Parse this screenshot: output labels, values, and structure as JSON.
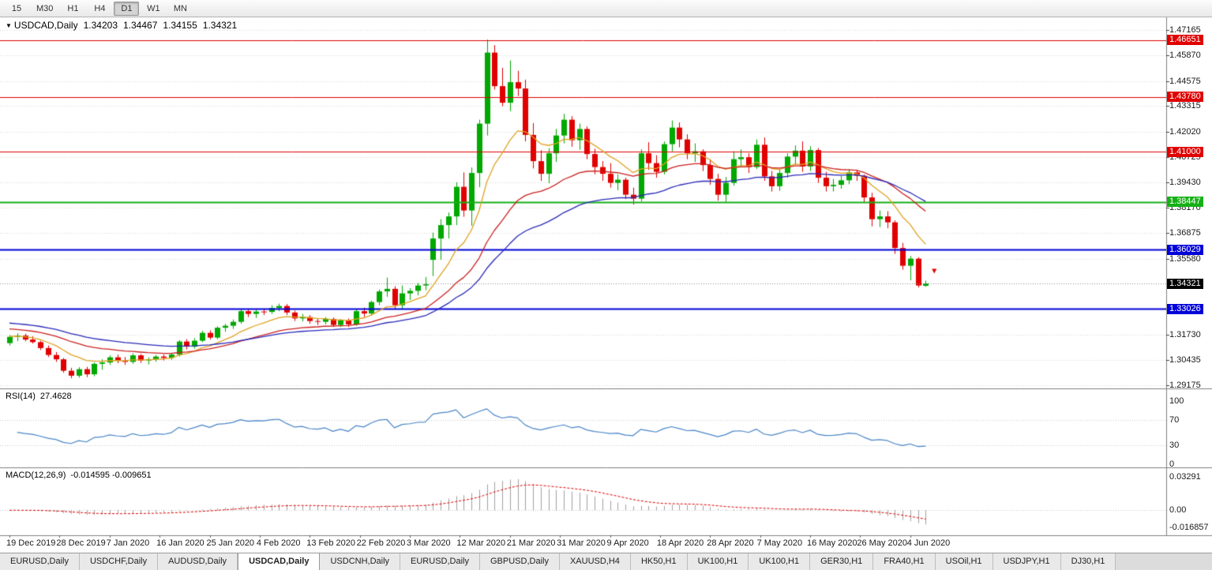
{
  "toolbar": {
    "periods": [
      "15",
      "M30",
      "H1",
      "H4",
      "D1",
      "W1",
      "MN"
    ],
    "active_period": "D1"
  },
  "chart_title": {
    "icon": "▼",
    "symbol": "USDCAD,Daily",
    "open": "1.34203",
    "high": "1.34467",
    "low": "1.34155",
    "close": "1.34321"
  },
  "price_axis": {
    "plain_labels": [
      "1.47165",
      "1.45870",
      "1.44575",
      "1.43315",
      "1.42020",
      "1.40725",
      "1.39430",
      "1.38170",
      "1.36875",
      "1.35580",
      "1.31730",
      "1.30435",
      "1.29175"
    ],
    "current_price": {
      "label": "1.34321",
      "value": 1.34321,
      "badge_color": "#000000"
    }
  },
  "levels": [
    {
      "label": "1.46651",
      "value": 1.46651,
      "color": "#E00000",
      "width": 1
    },
    {
      "label": "1.43780",
      "value": 1.4378,
      "color": "#E00000",
      "width": 1
    },
    {
      "label": "1.41000",
      "value": 1.41,
      "color": "#E00000",
      "width": 1
    },
    {
      "label": "1.38447",
      "value": 1.38447,
      "color": "#16B016",
      "width": 2
    },
    {
      "label": "1.36029",
      "value": 1.36029,
      "color": "#0000D8",
      "width": 2
    },
    {
      "label": "1.33026",
      "value": 1.33026,
      "color": "#0000D8",
      "width": 2
    }
  ],
  "indicators": {
    "rsi": {
      "label": "RSI(14)",
      "value_text": "27.4628",
      "period": 14,
      "axis_labels": [
        {
          "text": "100",
          "value": 100
        },
        {
          "text": "70",
          "value": 70
        },
        {
          "text": "30",
          "value": 30
        },
        {
          "text": "0",
          "value": 0
        }
      ],
      "levels": [
        70,
        30
      ],
      "line_color": "#4a86c8"
    },
    "macd": {
      "label": "MACD(12,26,9)",
      "value_text": "-0.014595 -0.009651",
      "fast": 12,
      "slow": 26,
      "signal": 9,
      "axis_labels": [
        {
          "text": "0.03291",
          "value": 0.03291
        },
        {
          "text": "0.00",
          "value": 0
        },
        {
          "text": "-0.016857",
          "value": -0.016857
        }
      ],
      "histogram_color": "#a0a0a0",
      "signal_color": "#E00000"
    }
  },
  "chart_data": {
    "type": "candlestick",
    "symbol": "USDCAD",
    "timeframe": "Daily",
    "price_range": [
      1.29,
      1.475
    ],
    "up_color": "#00A800",
    "down_color": "#E00000",
    "x_labels": [
      "19 Dec 2019",
      "28 Dec 2019",
      "7 Jan 2020",
      "16 Jan 2020",
      "25 Jan 2020",
      "4 Feb 2020",
      "13 Feb 2020",
      "22 Feb 2020",
      "3 Mar 2020",
      "12 Mar 2020",
      "21 Mar 2020",
      "31 Mar 2020",
      "9 Apr 2020",
      "18 Apr 2020",
      "28 Apr 2020",
      "7 May 2020",
      "16 May 2020",
      "26 May 2020",
      "4 Jun 2020"
    ],
    "bars_per_label": 6.5,
    "moving_averages": [
      {
        "name": "ma-fast",
        "period": 10,
        "seed": 1.3165,
        "color": "#DFA321"
      },
      {
        "name": "ma-mid",
        "period": 25,
        "seed": 1.3205,
        "color": "#CC2020"
      },
      {
        "name": "ma-slow",
        "period": 40,
        "seed": 1.3235,
        "color": "#2A2AB8"
      }
    ],
    "marker": {
      "price": 1.3495,
      "color": "#E00000"
    },
    "candles": [
      [
        1.313,
        1.3172,
        1.3118,
        1.3162
      ],
      [
        1.3162,
        1.318,
        1.314,
        1.3168
      ],
      [
        1.3168,
        1.3178,
        1.314,
        1.3148
      ],
      [
        1.3148,
        1.3165,
        1.3128,
        1.3135
      ],
      [
        1.3135,
        1.3142,
        1.3095,
        1.3105
      ],
      [
        1.3105,
        1.3118,
        1.306,
        1.307
      ],
      [
        1.307,
        1.3085,
        1.3035,
        1.3048
      ],
      [
        1.3048,
        1.3055,
        1.298,
        1.299
      ],
      [
        1.299,
        1.3005,
        1.2952,
        1.2965
      ],
      [
        1.2965,
        1.3008,
        1.2955,
        1.2998
      ],
      [
        1.2998,
        1.301,
        1.2958,
        1.2972
      ],
      [
        1.2972,
        1.3032,
        1.2962,
        1.3025
      ],
      [
        1.3025,
        1.3048,
        1.2995,
        1.3032
      ],
      [
        1.3032,
        1.3068,
        1.302,
        1.3058
      ],
      [
        1.3058,
        1.3072,
        1.3028,
        1.3042
      ],
      [
        1.3042,
        1.306,
        1.302,
        1.3035
      ],
      [
        1.3035,
        1.3078,
        1.3025,
        1.3068
      ],
      [
        1.3068,
        1.3075,
        1.303,
        1.3042
      ],
      [
        1.3042,
        1.3058,
        1.3022,
        1.3048
      ],
      [
        1.3048,
        1.307,
        1.3036,
        1.3062
      ],
      [
        1.3062,
        1.3072,
        1.3042,
        1.3055
      ],
      [
        1.3055,
        1.308,
        1.3045,
        1.3072
      ],
      [
        1.3072,
        1.3145,
        1.3062,
        1.3138
      ],
      [
        1.3138,
        1.315,
        1.3098,
        1.3112
      ],
      [
        1.3112,
        1.3155,
        1.3102,
        1.3142
      ],
      [
        1.3142,
        1.3192,
        1.3135,
        1.3182
      ],
      [
        1.3182,
        1.3195,
        1.3148,
        1.3158
      ],
      [
        1.3158,
        1.3215,
        1.315,
        1.3208
      ],
      [
        1.3208,
        1.3228,
        1.3188,
        1.3218
      ],
      [
        1.3218,
        1.325,
        1.3202,
        1.3238
      ],
      [
        1.3238,
        1.3302,
        1.3228,
        1.3292
      ],
      [
        1.3292,
        1.3305,
        1.3262,
        1.3278
      ],
      [
        1.3278,
        1.33,
        1.3258,
        1.329
      ],
      [
        1.329,
        1.3305,
        1.3272,
        1.3288
      ],
      [
        1.3288,
        1.3322,
        1.3278,
        1.3308
      ],
      [
        1.3308,
        1.333,
        1.3292,
        1.3318
      ],
      [
        1.3318,
        1.3328,
        1.3272,
        1.3285
      ],
      [
        1.3285,
        1.3295,
        1.3242,
        1.3255
      ],
      [
        1.3255,
        1.3278,
        1.324,
        1.3262
      ],
      [
        1.3262,
        1.3272,
        1.3228,
        1.3242
      ],
      [
        1.3242,
        1.3255,
        1.3222,
        1.3238
      ],
      [
        1.3238,
        1.3262,
        1.3225,
        1.3252
      ],
      [
        1.3252,
        1.326,
        1.3212,
        1.3222
      ],
      [
        1.3222,
        1.3252,
        1.3212,
        1.3245
      ],
      [
        1.3245,
        1.3255,
        1.3212,
        1.3225
      ],
      [
        1.3225,
        1.3302,
        1.3218,
        1.3292
      ],
      [
        1.3292,
        1.331,
        1.3262,
        1.328
      ],
      [
        1.328,
        1.3345,
        1.327,
        1.3338
      ],
      [
        1.3338,
        1.3402,
        1.3322,
        1.3392
      ],
      [
        1.3392,
        1.3462,
        1.3365,
        1.3405
      ],
      [
        1.3405,
        1.3418,
        1.3302,
        1.3322
      ],
      [
        1.3322,
        1.3422,
        1.3305,
        1.3382
      ],
      [
        1.3382,
        1.3408,
        1.3348,
        1.3395
      ],
      [
        1.3395,
        1.3435,
        1.3372,
        1.3422
      ],
      [
        1.3422,
        1.3465,
        1.3398,
        1.3428
      ],
      [
        1.3552,
        1.369,
        1.347,
        1.366
      ],
      [
        1.366,
        1.3758,
        1.3552,
        1.3728
      ],
      [
        1.3728,
        1.3792,
        1.366,
        1.3772
      ],
      [
        1.3772,
        1.3945,
        1.3728,
        1.3922
      ],
      [
        1.3922,
        1.3995,
        1.377,
        1.3802
      ],
      [
        1.3802,
        1.402,
        1.3725,
        1.3992
      ],
      [
        1.3992,
        1.4262,
        1.392,
        1.4242
      ],
      [
        1.4242,
        1.4668,
        1.4182,
        1.4602
      ],
      [
        1.4602,
        1.464,
        1.4415,
        1.4432
      ],
      [
        1.4432,
        1.4525,
        1.433,
        1.4348
      ],
      [
        1.4348,
        1.4562,
        1.4305,
        1.4452
      ],
      [
        1.4452,
        1.451,
        1.4382,
        1.442
      ],
      [
        1.442,
        1.4465,
        1.4152,
        1.4185
      ],
      [
        1.4185,
        1.4245,
        1.4015,
        1.4052
      ],
      [
        1.4052,
        1.4108,
        1.3952,
        1.3988
      ],
      [
        1.3988,
        1.4118,
        1.394,
        1.4092
      ],
      [
        1.4092,
        1.4215,
        1.4048,
        1.4182
      ],
      [
        1.4182,
        1.4292,
        1.4142,
        1.4262
      ],
      [
        1.4262,
        1.428,
        1.4125,
        1.4158
      ],
      [
        1.4158,
        1.4242,
        1.411,
        1.4215
      ],
      [
        1.4215,
        1.4228,
        1.4062,
        1.4088
      ],
      [
        1.4088,
        1.4115,
        1.3985,
        1.4022
      ],
      [
        1.4022,
        1.4052,
        1.3952,
        1.3988
      ],
      [
        1.3988,
        1.4042,
        1.3918,
        1.3942
      ],
      [
        1.3942,
        1.3985,
        1.3905,
        1.3958
      ],
      [
        1.3958,
        1.3968,
        1.386,
        1.3882
      ],
      [
        1.3882,
        1.3918,
        1.3832,
        1.3862
      ],
      [
        1.3862,
        1.4112,
        1.3848,
        1.4092
      ],
      [
        1.4092,
        1.4148,
        1.4008,
        1.4042
      ],
      [
        1.4042,
        1.4082,
        1.3968,
        1.3998
      ],
      [
        1.3998,
        1.4152,
        1.3985,
        1.4138
      ],
      [
        1.4138,
        1.4258,
        1.4102,
        1.4222
      ],
      [
        1.4222,
        1.4248,
        1.4122,
        1.4162
      ],
      [
        1.4162,
        1.4188,
        1.4062,
        1.4092
      ],
      [
        1.4092,
        1.4142,
        1.4048,
        1.4102
      ],
      [
        1.4102,
        1.4112,
        1.4002,
        1.4032
      ],
      [
        1.4032,
        1.4062,
        1.3932,
        1.3962
      ],
      [
        1.3962,
        1.3988,
        1.3852,
        1.3882
      ],
      [
        1.3882,
        1.3972,
        1.3845,
        1.3942
      ],
      [
        1.3942,
        1.4102,
        1.3928,
        1.4062
      ],
      [
        1.4062,
        1.4112,
        1.4022,
        1.4072
      ],
      [
        1.4072,
        1.4092,
        1.3992,
        1.4022
      ],
      [
        1.4022,
        1.4162,
        1.4012,
        1.4135
      ],
      [
        1.4135,
        1.4172,
        1.3952,
        1.3975
      ],
      [
        1.3975,
        1.4002,
        1.3898,
        1.3925
      ],
      [
        1.3925,
        1.4012,
        1.3902,
        1.3992
      ],
      [
        1.3992,
        1.4092,
        1.3968,
        1.4075
      ],
      [
        1.4075,
        1.4132,
        1.4032,
        1.4105
      ],
      [
        1.4105,
        1.4152,
        1.3998,
        1.4025
      ],
      [
        1.4025,
        1.4128,
        1.4002,
        1.4108
      ],
      [
        1.4108,
        1.4118,
        1.3942,
        1.3968
      ],
      [
        1.3968,
        1.3998,
        1.3898,
        1.3925
      ],
      [
        1.3925,
        1.3962,
        1.3898,
        1.3932
      ],
      [
        1.3932,
        1.3978,
        1.3912,
        1.3955
      ],
      [
        1.3955,
        1.4012,
        1.3935,
        1.3995
      ],
      [
        1.3995,
        1.4008,
        1.3952,
        1.3978
      ],
      [
        1.3978,
        1.3985,
        1.3842,
        1.3868
      ],
      [
        1.3868,
        1.3892,
        1.3722,
        1.3758
      ],
      [
        1.3758,
        1.3802,
        1.3718,
        1.3772
      ],
      [
        1.3772,
        1.3798,
        1.3712,
        1.3742
      ],
      [
        1.3742,
        1.3752,
        1.3582,
        1.3612
      ],
      [
        1.3612,
        1.3638,
        1.3502,
        1.3522
      ],
      [
        1.3522,
        1.3572,
        1.3448,
        1.3558
      ],
      [
        1.3558,
        1.3565,
        1.3412,
        1.3422
      ],
      [
        1.34203,
        1.34467,
        1.34155,
        1.34321
      ]
    ]
  },
  "tabs": {
    "items": [
      "EURUSD,Daily",
      "USDCHF,Daily",
      "AUDUSD,Daily",
      "USDCAD,Daily",
      "USDCNH,Daily",
      "EURUSD,Daily",
      "GBPUSD,Daily",
      "XAUUSD,H4",
      "HK50,H1",
      "UK100,H1",
      "UK100,H1",
      "GER30,H1",
      "FRA40,H1",
      "USOil,H1",
      "USDJPY,H1",
      "DJ30,H1"
    ],
    "active_index": 3,
    "active": "USDCAD,Daily"
  }
}
